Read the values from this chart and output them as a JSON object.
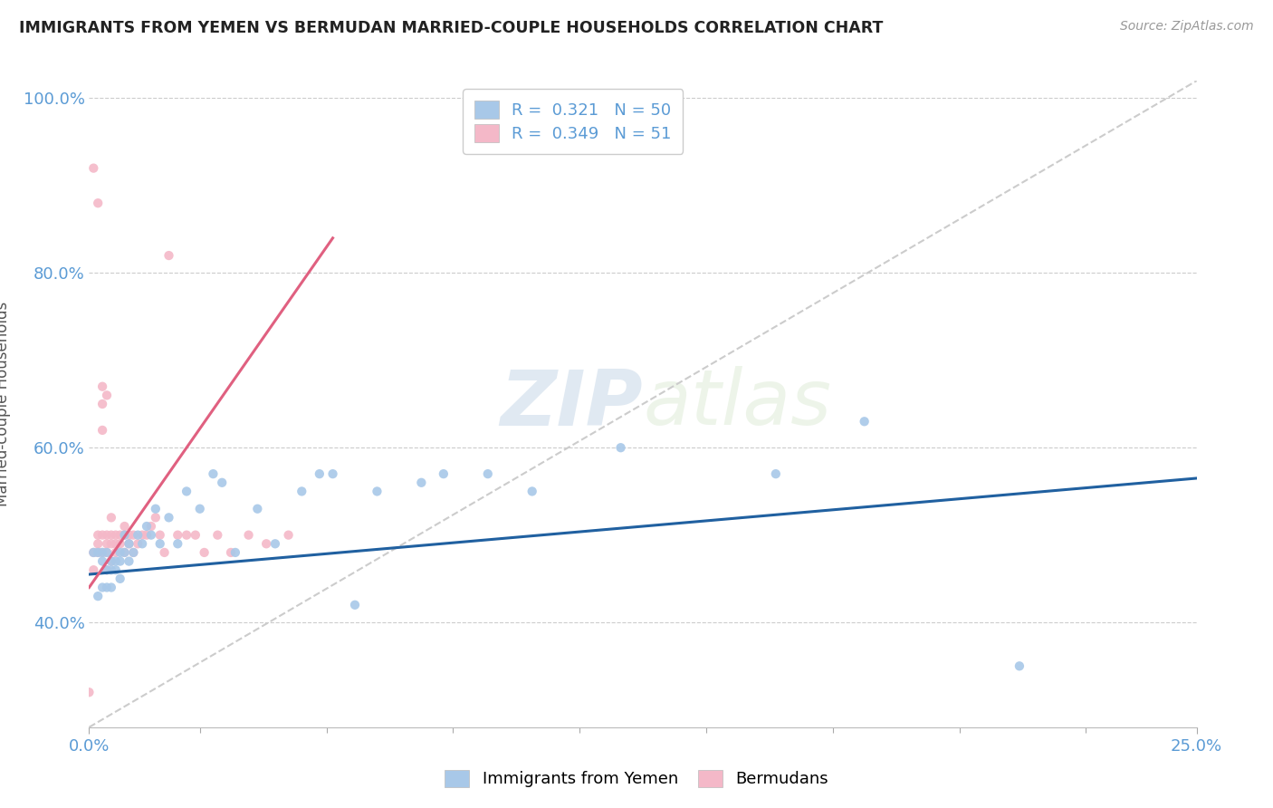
{
  "title": "IMMIGRANTS FROM YEMEN VS BERMUDAN MARRIED-COUPLE HOUSEHOLDS CORRELATION CHART",
  "source_text": "Source: ZipAtlas.com",
  "ylabel": "Married-couple Households",
  "legend_label_1": "Immigrants from Yemen",
  "legend_label_2": "Bermudans",
  "R1": 0.321,
  "N1": 50,
  "R2": 0.349,
  "N2": 51,
  "xlim": [
    0.0,
    0.25
  ],
  "ylim": [
    0.28,
    1.02
  ],
  "ytick_labels": [
    "40.0%",
    "60.0%",
    "80.0%",
    "100.0%"
  ],
  "ytick_values": [
    0.4,
    0.6,
    0.8,
    1.0
  ],
  "color_blue": "#a8c8e8",
  "color_pink": "#f4b8c8",
  "color_blue_line": "#2060a0",
  "color_pink_line": "#e06080",
  "color_diag": "#cccccc",
  "watermark_zip": "ZIP",
  "watermark_atlas": "atlas",
  "blue_scatter_x": [
    0.001,
    0.002,
    0.002,
    0.003,
    0.003,
    0.003,
    0.004,
    0.004,
    0.004,
    0.005,
    0.005,
    0.005,
    0.006,
    0.006,
    0.007,
    0.007,
    0.007,
    0.008,
    0.008,
    0.009,
    0.009,
    0.01,
    0.011,
    0.012,
    0.013,
    0.014,
    0.015,
    0.016,
    0.018,
    0.02,
    0.022,
    0.025,
    0.028,
    0.03,
    0.033,
    0.038,
    0.042,
    0.048,
    0.052,
    0.055,
    0.06,
    0.065,
    0.075,
    0.08,
    0.09,
    0.1,
    0.12,
    0.155,
    0.175,
    0.21
  ],
  "blue_scatter_y": [
    0.48,
    0.48,
    0.43,
    0.48,
    0.47,
    0.44,
    0.46,
    0.48,
    0.44,
    0.47,
    0.44,
    0.46,
    0.47,
    0.46,
    0.48,
    0.47,
    0.45,
    0.5,
    0.48,
    0.49,
    0.47,
    0.48,
    0.5,
    0.49,
    0.51,
    0.5,
    0.53,
    0.49,
    0.52,
    0.49,
    0.55,
    0.53,
    0.57,
    0.56,
    0.48,
    0.53,
    0.49,
    0.55,
    0.57,
    0.57,
    0.42,
    0.55,
    0.56,
    0.57,
    0.57,
    0.55,
    0.6,
    0.57,
    0.63,
    0.35
  ],
  "pink_scatter_x": [
    0.0,
    0.001,
    0.001,
    0.001,
    0.002,
    0.002,
    0.002,
    0.002,
    0.003,
    0.003,
    0.003,
    0.003,
    0.003,
    0.004,
    0.004,
    0.004,
    0.004,
    0.004,
    0.005,
    0.005,
    0.005,
    0.005,
    0.006,
    0.006,
    0.006,
    0.007,
    0.007,
    0.008,
    0.008,
    0.008,
    0.009,
    0.009,
    0.01,
    0.01,
    0.011,
    0.012,
    0.013,
    0.014,
    0.015,
    0.016,
    0.017,
    0.018,
    0.02,
    0.022,
    0.024,
    0.026,
    0.029,
    0.032,
    0.036,
    0.04,
    0.045
  ],
  "pink_scatter_y": [
    0.32,
    0.48,
    0.92,
    0.46,
    0.49,
    0.48,
    0.5,
    0.88,
    0.67,
    0.5,
    0.65,
    0.48,
    0.62,
    0.49,
    0.48,
    0.5,
    0.66,
    0.46,
    0.5,
    0.47,
    0.49,
    0.52,
    0.49,
    0.48,
    0.5,
    0.5,
    0.49,
    0.51,
    0.48,
    0.5,
    0.5,
    0.49,
    0.5,
    0.48,
    0.49,
    0.5,
    0.5,
    0.51,
    0.52,
    0.5,
    0.48,
    0.82,
    0.5,
    0.5,
    0.5,
    0.48,
    0.5,
    0.48,
    0.5,
    0.49,
    0.5
  ],
  "blue_line_x0": 0.0,
  "blue_line_y0": 0.455,
  "blue_line_x1": 0.25,
  "blue_line_y1": 0.565,
  "pink_line_x0": 0.0,
  "pink_line_y0": 0.44,
  "pink_line_x1": 0.055,
  "pink_line_y1": 0.84
}
